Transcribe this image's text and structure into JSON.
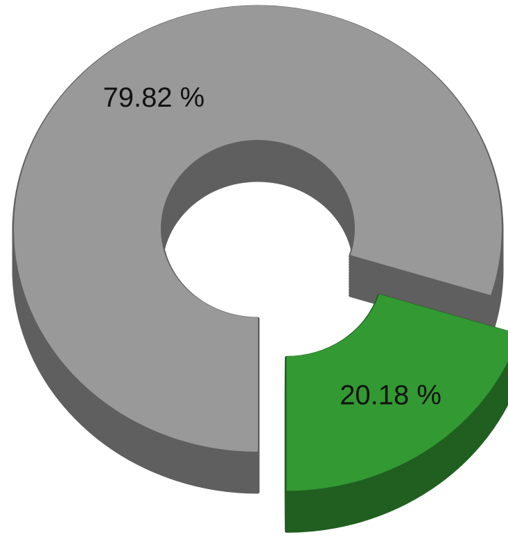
{
  "chart_data": {
    "type": "pie",
    "donut": true,
    "values": [
      79.82,
      20.18
    ],
    "value_labels": [
      "79.82 %",
      "20.18 %"
    ],
    "colors": [
      "#999999",
      "#339933"
    ]
  }
}
